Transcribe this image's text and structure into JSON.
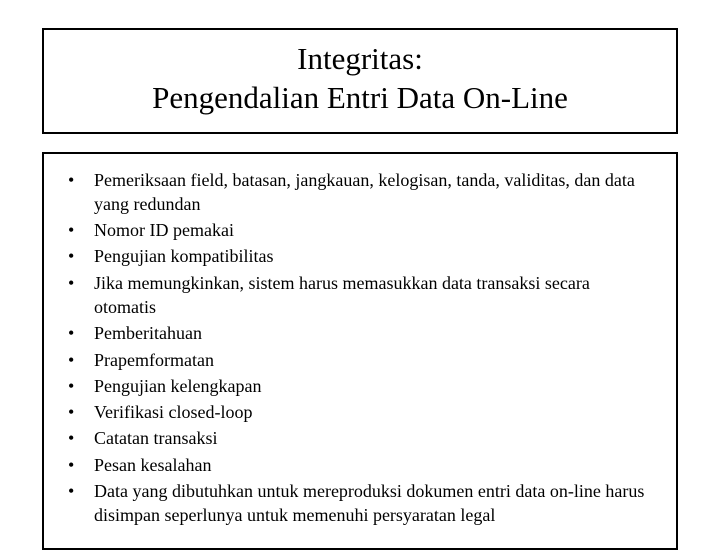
{
  "title": {
    "line1": "Integritas:",
    "line2": "Pengendalian Entri Data On-Line"
  },
  "bullets": {
    "b0": "Pemeriksaan field, batasan, jangkauan, kelogisan, tanda, validitas, dan data yang redundan",
    "b1": "Nomor ID pemakai",
    "b2": "Pengujian kompatibilitas",
    "b3": "Jika memungkinkan, sistem harus memasukkan data transaksi secara otomatis",
    "b4": "Pemberitahuan",
    "b5": "Prapemformatan",
    "b6": "Pengujian kelengkapan",
    "b7": "Verifikasi closed-loop",
    "b8": "Catatan transaksi",
    "b9": "Pesan kesalahan",
    "b10": "Data yang dibutuhkan untuk mereproduksi dokumen entri data on-line harus disimpan seperlunya untuk memenuhi persyaratan legal"
  },
  "style": {
    "page_bg": "#ffffff",
    "text_color": "#000000",
    "border_color": "#000000",
    "title_fontsize": 31,
    "bullet_fontsize": 18,
    "font_family": "Times New Roman"
  }
}
